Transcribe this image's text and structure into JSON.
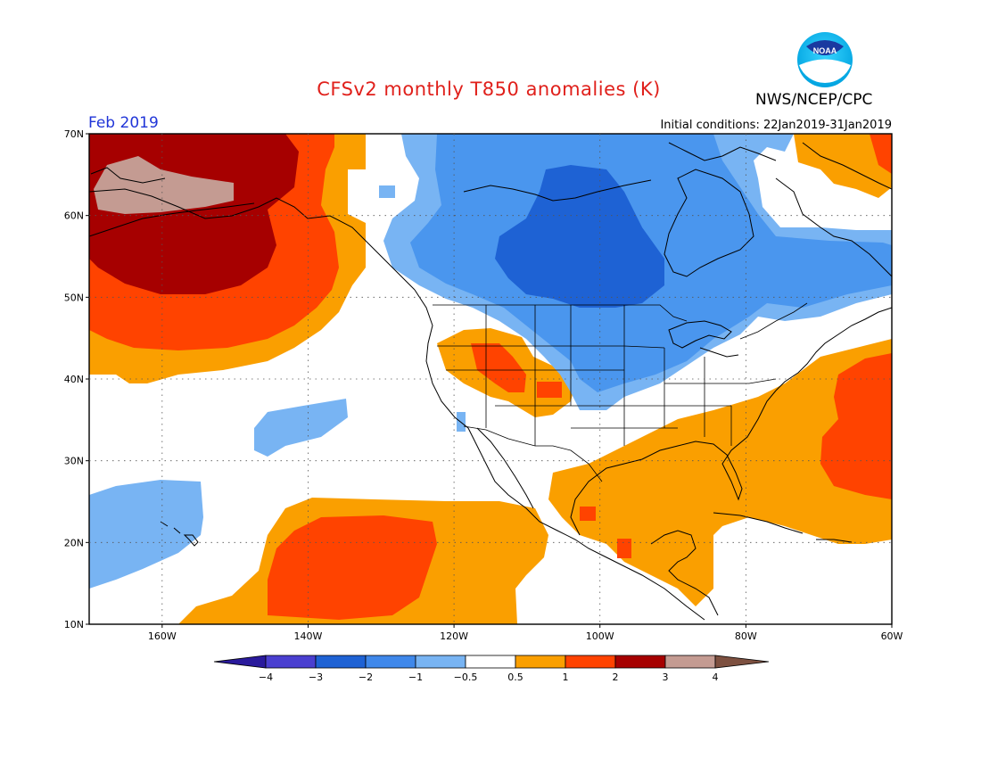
{
  "header": {
    "title": "CFSv2 monthly T850 anomalies (K)",
    "agency": "NWS/NCEP/CPC",
    "logo_text": "NOAA",
    "month": "Feb 2019",
    "initial_conditions": "Initial conditions: 22Jan2019-31Jan2019"
  },
  "map": {
    "lon_range": [
      -170,
      -60
    ],
    "lat_range": [
      10,
      70
    ],
    "lat_ticks": [
      "10N",
      "20N",
      "30N",
      "40N",
      "50N",
      "60N",
      "70N"
    ],
    "lon_ticks": [
      "160W",
      "140W",
      "120W",
      "100W",
      "80W",
      "60W"
    ],
    "colors": {
      "neg4": "#1a1a9c",
      "neg3": "#4a3fd0",
      "neg2": "#1e62d4",
      "neg1": "#4a96ee",
      "neg05": "#78b4f3",
      "zero": "#ffffff",
      "pos05": "#fa9f00",
      "pos1": "#ff4300",
      "pos2": "#a60000",
      "pos3": "#c49b92",
      "pos4": "#7d5040"
    }
  },
  "legend": {
    "labels": [
      "−4",
      "−3",
      "−2",
      "−1",
      "−0.5",
      "0.5",
      "1",
      "2",
      "3",
      "4"
    ],
    "colors": [
      "#4a3fd0",
      "#1e62d4",
      "#3f88ea",
      "#78b4f3",
      "#ffffff",
      "#fa9f00",
      "#ff4300",
      "#a60000",
      "#c49b92"
    ],
    "low_color": "#2a1a9c",
    "high_color": "#7d5040"
  }
}
